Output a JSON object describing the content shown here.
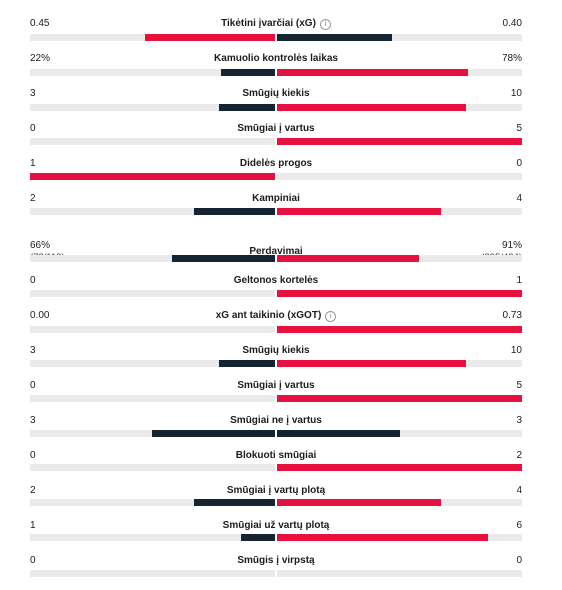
{
  "colors": {
    "lead": "#e8103f",
    "trail": "#152433",
    "track": "#eaeaea"
  },
  "stats": [
    {
      "label": "Tikėtini įvarčiai (xG)",
      "info": true,
      "home": "0.45",
      "away": "0.40",
      "home_share": 0.53,
      "away_share": 0.47,
      "lead": "home"
    },
    {
      "label": "Kamuolio kontrolės laikas",
      "home": "22%",
      "away": "78%",
      "home_share": 0.22,
      "away_share": 0.78,
      "lead": "away"
    },
    {
      "label": "Smūgių kiekis",
      "home": "3",
      "away": "10",
      "home_share": 0.23,
      "away_share": 0.77,
      "lead": "away"
    },
    {
      "label": "Smūgiai į vartus",
      "home": "0",
      "away": "5",
      "home_share": 0.0,
      "away_share": 1.0,
      "lead": "away"
    },
    {
      "label": "Didelės progos",
      "home": "1",
      "away": "0",
      "home_share": 1.0,
      "away_share": 0.0,
      "lead": "home"
    },
    {
      "label": "Kampiniai",
      "home": "2",
      "away": "4",
      "home_share": 0.33,
      "away_share": 0.67,
      "lead": "away"
    },
    {
      "label": "Perdavimai",
      "home": "66%",
      "away": "91%",
      "home_sub": "(78/119)",
      "away_sub": "(395/434)",
      "home_share": 0.42,
      "away_share": 0.58,
      "lead": "away"
    },
    {
      "label": "Geltonos kortelės",
      "home": "0",
      "away": "1",
      "home_share": 0.0,
      "away_share": 1.0,
      "lead": "away"
    },
    {
      "label": "xG ant taikinio (xGOT)",
      "info": true,
      "home": "0.00",
      "away": "0.73",
      "home_share": 0.0,
      "away_share": 1.0,
      "lead": "away"
    },
    {
      "label": "Smūgių kiekis",
      "home": "3",
      "away": "10",
      "home_share": 0.23,
      "away_share": 0.77,
      "lead": "away"
    },
    {
      "label": "Smūgiai į vartus",
      "home": "0",
      "away": "5",
      "home_share": 0.0,
      "away_share": 1.0,
      "lead": "away"
    },
    {
      "label": "Smūgiai ne į vartus",
      "home": "3",
      "away": "3",
      "home_share": 0.5,
      "away_share": 0.5,
      "lead": "none"
    },
    {
      "label": "Blokuoti smūgiai",
      "home": "0",
      "away": "2",
      "home_share": 0.0,
      "away_share": 1.0,
      "lead": "away"
    },
    {
      "label": "Smūgiai į vartų plotą",
      "home": "2",
      "away": "4",
      "home_share": 0.33,
      "away_share": 0.67,
      "lead": "away"
    },
    {
      "label": "Smūgiai už vartų plotą",
      "home": "1",
      "away": "6",
      "home_share": 0.14,
      "away_share": 0.86,
      "lead": "away"
    },
    {
      "label": "Smūgis į virpstą",
      "home": "0",
      "away": "0",
      "home_share": 0.0,
      "away_share": 0.0,
      "lead": "none"
    }
  ]
}
